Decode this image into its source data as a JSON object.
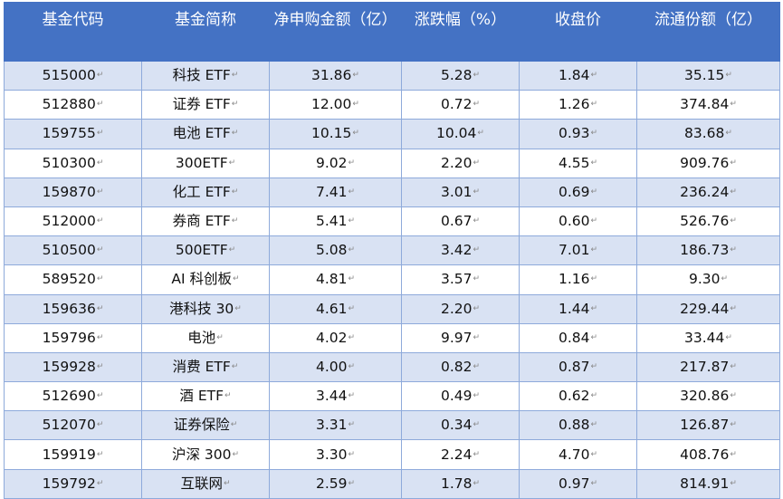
{
  "table": {
    "headers": [
      "基金代码",
      "基金简称",
      "净申购金额（亿）",
      "涨跌幅（%）",
      "收盘价",
      "流通份额（亿）"
    ],
    "rows": [
      [
        "515000",
        "科技 ETF",
        "31.86",
        "5.28",
        "1.84",
        "35.15"
      ],
      [
        "512880",
        "证券 ETF",
        "12.00",
        "0.72",
        "1.26",
        "374.84"
      ],
      [
        "159755",
        "电池 ETF",
        "10.15",
        "10.04",
        "0.93",
        "83.68"
      ],
      [
        "510300",
        "300ETF",
        "9.02",
        "2.20",
        "4.55",
        "909.76"
      ],
      [
        "159870",
        "化工 ETF",
        "7.41",
        "3.01",
        "0.69",
        "236.24"
      ],
      [
        "512000",
        "券商 ETF",
        "5.41",
        "0.67",
        "0.60",
        "526.76"
      ],
      [
        "510500",
        "500ETF",
        "5.08",
        "3.42",
        "7.01",
        "186.73"
      ],
      [
        "589520",
        "AI 科创板",
        "4.81",
        "3.57",
        "1.16",
        "9.30"
      ],
      [
        "159636",
        "港科技 30",
        "4.61",
        "2.20",
        "1.44",
        "229.44"
      ],
      [
        "159796",
        "电池",
        "4.02",
        "9.97",
        "0.84",
        "33.44"
      ],
      [
        "159928",
        "消费 ETF",
        "4.00",
        "0.82",
        "0.87",
        "217.87"
      ],
      [
        "512690",
        "酒 ETF",
        "3.44",
        "0.49",
        "0.62",
        "320.86"
      ],
      [
        "512070",
        "证券保险",
        "3.31",
        "0.34",
        "0.88",
        "126.87"
      ],
      [
        "159919",
        "沪深 300",
        "3.30",
        "2.24",
        "4.70",
        "408.76"
      ],
      [
        "159792",
        "互联网",
        "2.59",
        "1.78",
        "0.97",
        "814.91"
      ]
    ]
  },
  "colors": {
    "header_bg": "#4472c4",
    "header_text": "#ffffff",
    "band_row": "#d9e2f3",
    "plain_row": "#ffffff",
    "border": "#8eaadb"
  }
}
